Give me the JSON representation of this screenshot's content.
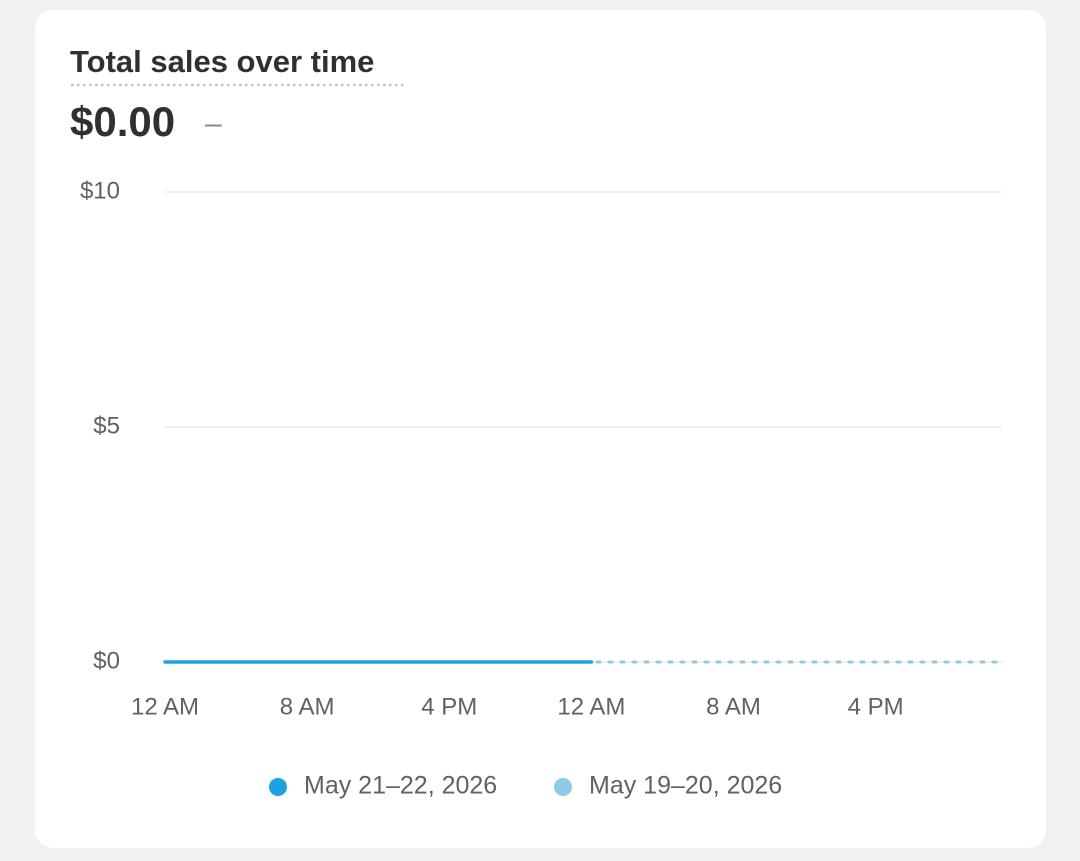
{
  "chart_data": {
    "type": "line",
    "title": "Total sales over time",
    "total": "$0.00",
    "change": "–",
    "categories": [
      "12 AM",
      null,
      null,
      null,
      null,
      null,
      null,
      null,
      "8 AM",
      null,
      null,
      null,
      null,
      null,
      null,
      null,
      "4 PM",
      null,
      null,
      null,
      null,
      null,
      null,
      null,
      "12 AM",
      null,
      null,
      null,
      null,
      null,
      null,
      null,
      "8 AM",
      null,
      null,
      null,
      null,
      null,
      null,
      null,
      "4 PM",
      null,
      null,
      null,
      null,
      null,
      null,
      null
    ],
    "series": [
      {
        "name": "May 21–22, 2026",
        "color": "#1ea1e2",
        "style": "solid",
        "values": [
          0,
          0,
          0,
          0,
          0,
          0,
          0,
          0,
          0,
          0,
          0,
          0,
          0,
          0,
          0,
          0,
          0,
          0,
          0,
          0,
          0,
          0,
          0,
          0,
          0,
          null,
          null,
          null,
          null,
          null,
          null,
          null,
          null,
          null,
          null,
          null,
          null,
          null,
          null,
          null,
          null,
          null,
          null,
          null,
          null,
          null,
          null,
          null
        ]
      },
      {
        "name": "May 19–20, 2026",
        "color": "#8dcbe6",
        "style": "dashed",
        "values": [
          0,
          0,
          0,
          0,
          0,
          0,
          0,
          0,
          0,
          0,
          0,
          0,
          0,
          0,
          0,
          0,
          0,
          0,
          0,
          0,
          0,
          0,
          0,
          0,
          0,
          0,
          0,
          0,
          0,
          0,
          0,
          0,
          0,
          0,
          0,
          0,
          0,
          0,
          0,
          0,
          0,
          0,
          0,
          0,
          0,
          0,
          0,
          0
        ]
      }
    ],
    "ylim": [
      0,
      10
    ],
    "yticks": [
      {
        "value": 0,
        "label": "$0"
      },
      {
        "value": 5,
        "label": "$5"
      },
      {
        "value": 10,
        "label": "$10"
      }
    ],
    "grid": true,
    "legend": "bottom"
  }
}
